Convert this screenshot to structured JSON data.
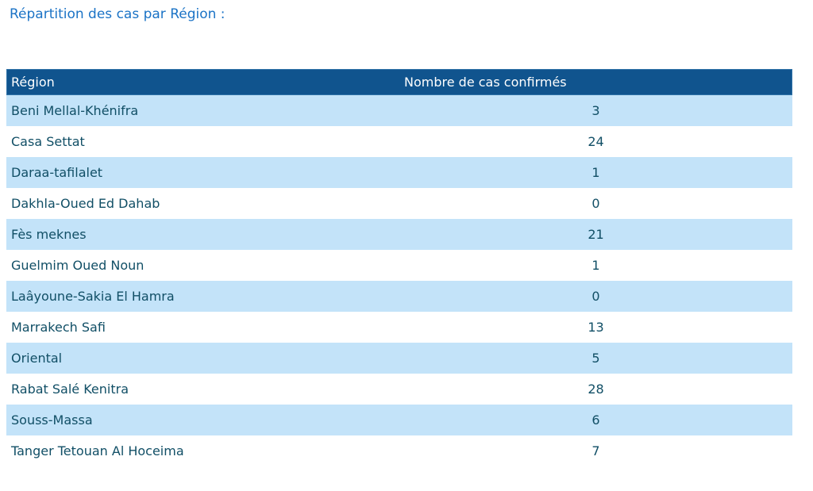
{
  "page": {
    "title": "Répartition des cas par Région :"
  },
  "chart_data": {
    "type": "table",
    "title": "Répartition des cas par Région :",
    "columns": [
      "Région",
      "Nombre de cas confirmés"
    ],
    "rows": [
      {
        "region": "Beni Mellal-Khénifra",
        "cases": "3"
      },
      {
        "region": "Casa Settat",
        "cases": "24"
      },
      {
        "region": "Daraa-tafilalet",
        "cases": "1"
      },
      {
        "region": "Dakhla-Oued Ed Dahab",
        "cases": "0"
      },
      {
        "region": "Fès meknes",
        "cases": "21"
      },
      {
        "region": "Guelmim Oued Noun",
        "cases": "1"
      },
      {
        "region": "Laâyoune-Sakia El Hamra",
        "cases": "0"
      },
      {
        "region": "Marrakech Safi",
        "cases": "13"
      },
      {
        "region": "Oriental",
        "cases": "5"
      },
      {
        "region": "Rabat Salé Kenitra",
        "cases": "28"
      },
      {
        "region": "Souss-Massa",
        "cases": "6"
      },
      {
        "region": "Tanger Tetouan Al Hoceima",
        "cases": "7"
      }
    ],
    "layout_hints": {
      "first_body_row_shaded": true,
      "zebra_striping": true,
      "value_column_alignment": "center",
      "header_alignment": "left"
    }
  },
  "colors": {
    "title_color": "#1b73c6",
    "header_bg": "#10548e",
    "header_border": "#2f72a8",
    "header_text": "#ffffff",
    "row_alt_bg": "#c3e3f9",
    "row_bg": "#ffffff",
    "row_text": "#114f66",
    "page_bg": "#ffffff"
  }
}
